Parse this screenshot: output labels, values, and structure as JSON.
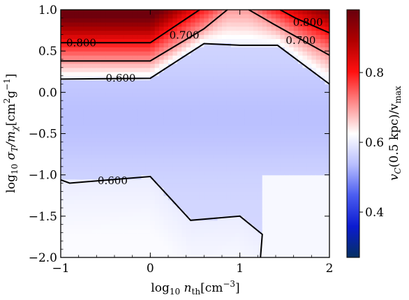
{
  "chart_data": {
    "type": "heatmap",
    "title": "",
    "xlabel": {
      "base": "log",
      "sub": "10",
      "rest": " n",
      "sub2": "th",
      "unit": "[cm",
      "exp": "−3",
      "close": "]"
    },
    "ylabel": {
      "base": "log",
      "sub": "10",
      "rest": " σ",
      "sub2": "T",
      "mid": "/m",
      "sub3": "χ",
      "unit": "[cm",
      "exp": "2",
      "g": "g",
      "exp2": "−1",
      "close": "]"
    },
    "colorbar_label": {
      "pre": "v",
      "sub": "C",
      "mid": "(0.5 kpc)/v",
      "sub2": "max"
    },
    "xlim": [
      -1,
      2
    ],
    "ylim": [
      -2,
      1
    ],
    "x_ticks": [
      {
        "value": -1,
        "label": "−1"
      },
      {
        "value": 0,
        "label": "0"
      },
      {
        "value": 1,
        "label": "1"
      },
      {
        "value": 2,
        "label": "2"
      }
    ],
    "y_ticks": [
      {
        "value": 1.0,
        "label": "1.0"
      },
      {
        "value": 0.5,
        "label": "0.5"
      },
      {
        "value": 0.0,
        "label": "0.0"
      },
      {
        "value": -0.5,
        "label": "−0.5"
      },
      {
        "value": -1.0,
        "label": "−1.0"
      },
      {
        "value": -1.5,
        "label": "−1.5"
      },
      {
        "value": -2.0,
        "label": "−2.0"
      }
    ],
    "colorbar": {
      "vmin": 0.27,
      "vmax": 0.98,
      "colormap": [
        "#053061",
        "#0b1bd0",
        "#4a5cf0",
        "#b8beff",
        "#ffffff",
        "#ff8a8a",
        "#ff1010",
        "#b00000",
        "#67000d"
      ],
      "ticks": [
        {
          "value": 0.4,
          "label": "0.4"
        },
        {
          "value": 0.6,
          "label": "0.6"
        },
        {
          "value": 0.8,
          "label": "0.8"
        }
      ]
    },
    "contours": [
      {
        "level": 0.8,
        "label": "0.800",
        "segments": [
          [
            [
              -1.0,
              0.6
            ],
            [
              0.0,
              0.6
            ],
            [
              0.55,
              1.0
            ]
          ],
          [
            [
              1.45,
              1.0
            ],
            [
              1.62,
              0.9
            ],
            [
              2.0,
              0.72
            ]
          ]
        ],
        "label_positions": [
          [
            -0.77,
            0.6
          ],
          [
            1.76,
            0.85
          ]
        ]
      },
      {
        "level": 0.7,
        "label": "0.700",
        "segments": [
          [
            [
              -1.0,
              0.38
            ],
            [
              0.0,
              0.38
            ],
            [
              0.6,
              0.77
            ],
            [
              0.86,
              1.0
            ]
          ],
          [
            [
              1.1,
              1.0
            ],
            [
              1.37,
              0.83
            ],
            [
              2.0,
              0.45
            ]
          ]
        ],
        "label_positions": [
          [
            0.38,
            0.69
          ],
          [
            1.68,
            0.63
          ]
        ]
      },
      {
        "level": 0.6,
        "label": "0.600",
        "segments": [
          [
            [
              -1.0,
              0.16
            ],
            [
              0.0,
              0.17
            ],
            [
              0.6,
              0.59
            ],
            [
              1.0,
              0.57
            ],
            [
              1.42,
              0.57
            ],
            [
              2.0,
              0.1
            ]
          ]
        ],
        "label_positions": [
          [
            -0.33,
            0.17
          ]
        ]
      },
      {
        "level": 0.6,
        "label": "0.600",
        "segments": [
          [
            [
              -1.0,
              -1.06
            ],
            [
              -0.9,
              -1.1
            ],
            [
              0.0,
              -1.02
            ],
            [
              0.45,
              -1.55
            ],
            [
              1.0,
              -1.5
            ],
            [
              1.25,
              -1.72
            ],
            [
              1.23,
              -2.0
            ]
          ]
        ],
        "label_positions": [
          [
            -0.42,
            -1.07
          ]
        ]
      }
    ]
  }
}
